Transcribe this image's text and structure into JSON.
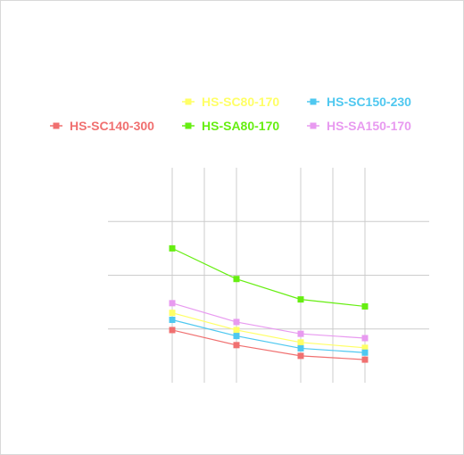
{
  "chart_data": {
    "type": "line",
    "title": "",
    "xlabel": "",
    "ylabel": "",
    "x": [
      1,
      2,
      3,
      4
    ],
    "xlim": [
      0,
      5
    ],
    "ylim": [
      0,
      4
    ],
    "grid": true,
    "legend_position": "top",
    "series": [
      {
        "name": "HS-SC80-170",
        "color": "#ffff66",
        "values": [
          1.3,
          0.98,
          0.75,
          0.65
        ]
      },
      {
        "name": "HS-SC150-230",
        "color": "#4fc8f0",
        "values": [
          1.17,
          0.87,
          0.64,
          0.56
        ]
      },
      {
        "name": "HS-SC140-300",
        "color": "#f07070",
        "values": [
          0.98,
          0.7,
          0.5,
          0.43
        ]
      },
      {
        "name": "HS-SA80-170",
        "color": "#66ee11",
        "values": [
          2.5,
          1.93,
          1.55,
          1.42
        ]
      },
      {
        "name": "HS-SA150-170",
        "color": "#e89af0",
        "values": [
          1.48,
          1.13,
          0.91,
          0.83
        ]
      }
    ]
  }
}
